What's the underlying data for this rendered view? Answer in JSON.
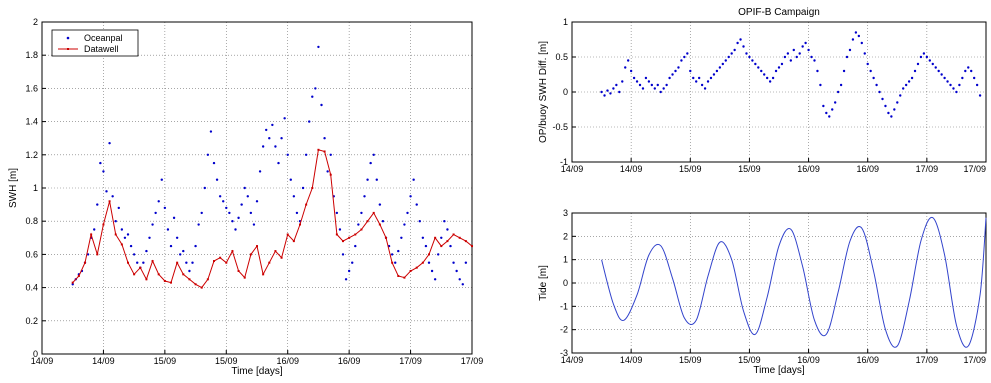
{
  "chart_data": [
    {
      "id": "swh",
      "type": "line",
      "xlabel": "Time [days]",
      "ylabel": "SWH [m]",
      "xlim": [
        0,
        28
      ],
      "ylim": [
        0,
        2
      ],
      "yticks": [
        0,
        0.2,
        0.4,
        0.6,
        0.8,
        1,
        1.2,
        1.4,
        1.6,
        1.8,
        2
      ],
      "xticks": [
        {
          "x": 0,
          "label": "14/09"
        },
        {
          "x": 4,
          "label": "14/09"
        },
        {
          "x": 8,
          "label": "15/09"
        },
        {
          "x": 12,
          "label": "15/09"
        },
        {
          "x": 16,
          "label": "16/09"
        },
        {
          "x": 20,
          "label": "16/09"
        },
        {
          "x": 24,
          "label": "17/09"
        },
        {
          "x": 28,
          "label": "17/09"
        }
      ],
      "grid": true,
      "legend": "top-left",
      "series": [
        {
          "name": "Oceanpal",
          "style": "dots",
          "color": "#0000cc",
          "x": [
            2.0,
            2.2,
            2.4,
            2.6,
            2.8,
            3.0,
            3.2,
            3.4,
            3.6,
            3.8,
            4.0,
            4.2,
            4.4,
            4.6,
            4.8,
            5.0,
            5.2,
            5.4,
            5.6,
            5.8,
            6.0,
            6.2,
            6.4,
            6.6,
            6.8,
            7.0,
            7.2,
            7.4,
            7.6,
            7.8,
            8.0,
            8.2,
            8.4,
            8.6,
            8.8,
            9.0,
            9.2,
            9.4,
            9.6,
            9.8,
            10.0,
            10.2,
            10.4,
            10.6,
            10.8,
            11.0,
            11.2,
            11.4,
            11.6,
            11.8,
            12.0,
            12.2,
            12.4,
            12.6,
            12.8,
            13.0,
            13.2,
            13.4,
            13.6,
            13.8,
            14.0,
            14.2,
            14.4,
            14.6,
            14.8,
            15.0,
            15.2,
            15.4,
            15.6,
            15.8,
            16.0,
            16.2,
            16.4,
            16.6,
            16.8,
            17.0,
            17.2,
            17.4,
            17.6,
            17.8,
            18.0,
            18.2,
            18.4,
            18.6,
            18.8,
            19.0,
            19.2,
            19.4,
            19.6,
            19.8,
            20.0,
            20.2,
            20.4,
            20.6,
            20.8,
            21.0,
            21.2,
            21.4,
            21.6,
            21.8,
            22.0,
            22.2,
            22.4,
            22.6,
            22.8,
            23.0,
            23.2,
            23.4,
            23.6,
            23.8,
            24.0,
            24.2,
            24.4,
            24.6,
            24.8,
            25.0,
            25.2,
            25.4,
            25.6,
            25.8,
            26.0,
            26.2,
            26.4,
            26.6,
            26.8,
            27.0,
            27.2,
            27.4,
            27.6
          ],
          "y": [
            0.42,
            0.45,
            0.48,
            0.5,
            0.55,
            0.6,
            0.7,
            0.75,
            0.9,
            1.15,
            1.1,
            0.98,
            1.27,
            0.95,
            0.8,
            0.88,
            0.75,
            0.7,
            0.72,
            0.65,
            0.6,
            0.55,
            0.52,
            0.55,
            0.62,
            0.7,
            0.78,
            0.85,
            0.92,
            1.05,
            0.88,
            0.75,
            0.65,
            0.82,
            0.7,
            0.6,
            0.62,
            0.55,
            0.5,
            0.55,
            0.65,
            0.78,
            0.85,
            1.0,
            1.2,
            1.34,
            1.15,
            1.05,
            0.95,
            0.92,
            0.88,
            0.85,
            0.8,
            0.75,
            0.82,
            0.9,
            1.0,
            0.95,
            0.85,
            0.78,
            0.92,
            1.1,
            1.25,
            1.35,
            1.3,
            1.38,
            1.25,
            1.15,
            1.3,
            1.42,
            1.2,
            1.05,
            0.95,
            0.85,
            0.8,
            1.0,
            1.2,
            1.4,
            1.55,
            1.6,
            1.85,
            1.5,
            1.3,
            1.1,
            1.2,
            0.95,
            0.85,
            0.75,
            0.6,
            0.45,
            0.5,
            0.55,
            0.65,
            0.78,
            0.85,
            0.95,
            1.05,
            1.15,
            1.2,
            1.05,
            0.9,
            0.8,
            0.7,
            0.65,
            0.6,
            0.55,
            0.62,
            0.7,
            0.78,
            0.85,
            0.95,
            1.05,
            0.9,
            0.8,
            0.7,
            0.65,
            0.55,
            0.5,
            0.45,
            0.6,
            0.7,
            0.8,
            0.75,
            0.65,
            0.55,
            0.5,
            0.45,
            0.42,
            0.55
          ]
        },
        {
          "name": "Datawell",
          "style": "line-markers",
          "color": "#cc0000",
          "x": [
            2.0,
            2.4,
            2.8,
            3.2,
            3.6,
            4.0,
            4.4,
            4.8,
            5.2,
            5.6,
            6.0,
            6.4,
            6.8,
            7.2,
            7.6,
            8.0,
            8.4,
            8.8,
            9.2,
            9.6,
            10.0,
            10.4,
            10.8,
            11.2,
            11.6,
            12.0,
            12.4,
            12.8,
            13.2,
            13.6,
            14.0,
            14.4,
            14.8,
            15.2,
            15.6,
            16.0,
            16.4,
            16.8,
            17.2,
            17.6,
            18.0,
            18.4,
            18.8,
            19.2,
            19.6,
            20.0,
            20.4,
            20.8,
            21.2,
            21.6,
            22.0,
            22.4,
            22.8,
            23.2,
            23.6,
            24.0,
            24.4,
            24.8,
            25.2,
            25.6,
            26.0,
            26.4,
            26.8,
            27.2,
            27.6,
            28.0
          ],
          "y": [
            0.43,
            0.47,
            0.55,
            0.72,
            0.6,
            0.78,
            0.92,
            0.72,
            0.66,
            0.55,
            0.48,
            0.52,
            0.45,
            0.56,
            0.48,
            0.44,
            0.43,
            0.55,
            0.48,
            0.45,
            0.42,
            0.4,
            0.45,
            0.56,
            0.58,
            0.55,
            0.62,
            0.5,
            0.46,
            0.6,
            0.65,
            0.48,
            0.55,
            0.62,
            0.58,
            0.72,
            0.68,
            0.78,
            0.9,
            1.0,
            1.23,
            1.22,
            1.08,
            0.72,
            0.68,
            0.7,
            0.72,
            0.75,
            0.8,
            0.85,
            0.78,
            0.7,
            0.55,
            0.47,
            0.46,
            0.5,
            0.52,
            0.55,
            0.6,
            0.7,
            0.65,
            0.68,
            0.72,
            0.7,
            0.68,
            0.65
          ]
        }
      ]
    },
    {
      "id": "diff",
      "type": "scatter",
      "title": "OPIF-B Campaign",
      "xlabel": "",
      "ylabel": "OP/buoy SWH Diff. [m]",
      "xlim": [
        0,
        28
      ],
      "ylim": [
        -1,
        1
      ],
      "yticks": [
        -1,
        -0.5,
        0,
        0.5,
        1
      ],
      "xticks": [
        {
          "x": 0,
          "label": "14/09"
        },
        {
          "x": 4,
          "label": "14/09"
        },
        {
          "x": 8,
          "label": "15/09"
        },
        {
          "x": 12,
          "label": "15/09"
        },
        {
          "x": 16,
          "label": "16/09"
        },
        {
          "x": 20,
          "label": "16/09"
        },
        {
          "x": 24,
          "label": "17/09"
        },
        {
          "x": 28,
          "label": "17/09"
        }
      ],
      "grid": true,
      "series": [
        {
          "color": "#0000cc",
          "x": [
            2.0,
            2.2,
            2.4,
            2.6,
            2.8,
            3.0,
            3.2,
            3.4,
            3.6,
            3.8,
            4.0,
            4.2,
            4.4,
            4.6,
            4.8,
            5.0,
            5.2,
            5.4,
            5.6,
            5.8,
            6.0,
            6.2,
            6.4,
            6.6,
            6.8,
            7.0,
            7.2,
            7.4,
            7.6,
            7.8,
            8.0,
            8.2,
            8.4,
            8.6,
            8.8,
            9.0,
            9.2,
            9.4,
            9.6,
            9.8,
            10.0,
            10.2,
            10.4,
            10.6,
            10.8,
            11.0,
            11.2,
            11.4,
            11.6,
            11.8,
            12.0,
            12.2,
            12.4,
            12.6,
            12.8,
            13.0,
            13.2,
            13.4,
            13.6,
            13.8,
            14.0,
            14.2,
            14.4,
            14.6,
            14.8,
            15.0,
            15.2,
            15.4,
            15.6,
            15.8,
            16.0,
            16.2,
            16.4,
            16.6,
            16.8,
            17.0,
            17.2,
            17.4,
            17.6,
            17.8,
            18.0,
            18.2,
            18.4,
            18.6,
            18.8,
            19.0,
            19.2,
            19.4,
            19.6,
            19.8,
            20.0,
            20.2,
            20.4,
            20.6,
            20.8,
            21.0,
            21.2,
            21.4,
            21.6,
            21.8,
            22.0,
            22.2,
            22.4,
            22.6,
            22.8,
            23.0,
            23.2,
            23.4,
            23.6,
            23.8,
            24.0,
            24.2,
            24.4,
            24.6,
            24.8,
            25.0,
            25.2,
            25.4,
            25.6,
            25.8,
            26.0,
            26.2,
            26.4,
            26.6,
            26.8,
            27.0,
            27.2,
            27.4,
            27.6
          ],
          "y": [
            0.0,
            -0.05,
            0.02,
            -0.02,
            0.05,
            0.1,
            0.0,
            0.15,
            0.35,
            0.45,
            0.3,
            0.2,
            0.15,
            0.1,
            0.05,
            0.2,
            0.15,
            0.1,
            0.05,
            0.1,
            0.0,
            0.05,
            0.1,
            0.2,
            0.25,
            0.3,
            0.35,
            0.45,
            0.5,
            0.55,
            0.3,
            0.2,
            0.15,
            0.2,
            0.1,
            0.05,
            0.15,
            0.2,
            0.25,
            0.3,
            0.35,
            0.4,
            0.45,
            0.5,
            0.55,
            0.6,
            0.7,
            0.75,
            0.65,
            0.55,
            0.5,
            0.45,
            0.4,
            0.35,
            0.3,
            0.25,
            0.2,
            0.15,
            0.2,
            0.3,
            0.35,
            0.4,
            0.5,
            0.55,
            0.45,
            0.6,
            0.5,
            0.55,
            0.65,
            0.7,
            0.6,
            0.5,
            0.45,
            0.3,
            0.1,
            -0.2,
            -0.3,
            -0.35,
            -0.25,
            -0.15,
            0.0,
            0.1,
            0.3,
            0.5,
            0.6,
            0.75,
            0.85,
            0.8,
            0.7,
            0.55,
            0.4,
            0.3,
            0.2,
            0.1,
            0.0,
            -0.1,
            -0.2,
            -0.3,
            -0.35,
            -0.25,
            -0.15,
            -0.05,
            0.05,
            0.1,
            0.15,
            0.2,
            0.3,
            0.4,
            0.5,
            0.55,
            0.5,
            0.45,
            0.4,
            0.35,
            0.3,
            0.25,
            0.2,
            0.15,
            0.1,
            0.05,
            0.0,
            0.1,
            0.2,
            0.3,
            0.35,
            0.3,
            0.2,
            0.1,
            -0.05
          ]
        }
      ]
    },
    {
      "id": "tide",
      "type": "line",
      "xlabel": "Time [days]",
      "ylabel": "Tide [m]",
      "xlim": [
        0,
        28
      ],
      "ylim": [
        -3,
        3
      ],
      "yticks": [
        -3,
        -2,
        -1,
        0,
        1,
        2,
        3
      ],
      "xticks": [
        {
          "x": 0,
          "label": "14/09"
        },
        {
          "x": 4,
          "label": "14/09"
        },
        {
          "x": 8,
          "label": "15/09"
        },
        {
          "x": 12,
          "label": "15/09"
        },
        {
          "x": 16,
          "label": "16/09"
        },
        {
          "x": 20,
          "label": "16/09"
        },
        {
          "x": 24,
          "label": "17/09"
        },
        {
          "x": 28,
          "label": "17/09"
        }
      ],
      "grid": true,
      "series": [
        {
          "color": "#3344cc",
          "style": "line",
          "x": [
            2.0,
            2.8,
            3.5,
            4.4,
            5.2,
            6.0,
            6.8,
            7.6,
            8.4,
            9.2,
            10.0,
            10.8,
            11.6,
            12.4,
            13.2,
            14.0,
            14.8,
            15.6,
            16.4,
            17.2,
            18.0,
            18.8,
            19.6,
            20.4,
            21.2,
            22.0,
            22.8,
            23.6,
            24.4,
            25.2,
            26.0,
            26.8,
            27.6,
            28.0
          ],
          "y": [
            1.0,
            -0.9,
            -1.6,
            -0.5,
            1.2,
            1.6,
            0.2,
            -1.5,
            -1.6,
            0.3,
            1.75,
            1.0,
            -1.2,
            -2.2,
            -0.6,
            1.6,
            2.3,
            0.7,
            -1.6,
            -2.2,
            -0.4,
            1.8,
            2.35,
            0.5,
            -2.0,
            -2.7,
            -0.8,
            1.8,
            2.8,
            1.2,
            -1.8,
            -2.7,
            -0.5,
            2.8
          ]
        }
      ]
    }
  ]
}
